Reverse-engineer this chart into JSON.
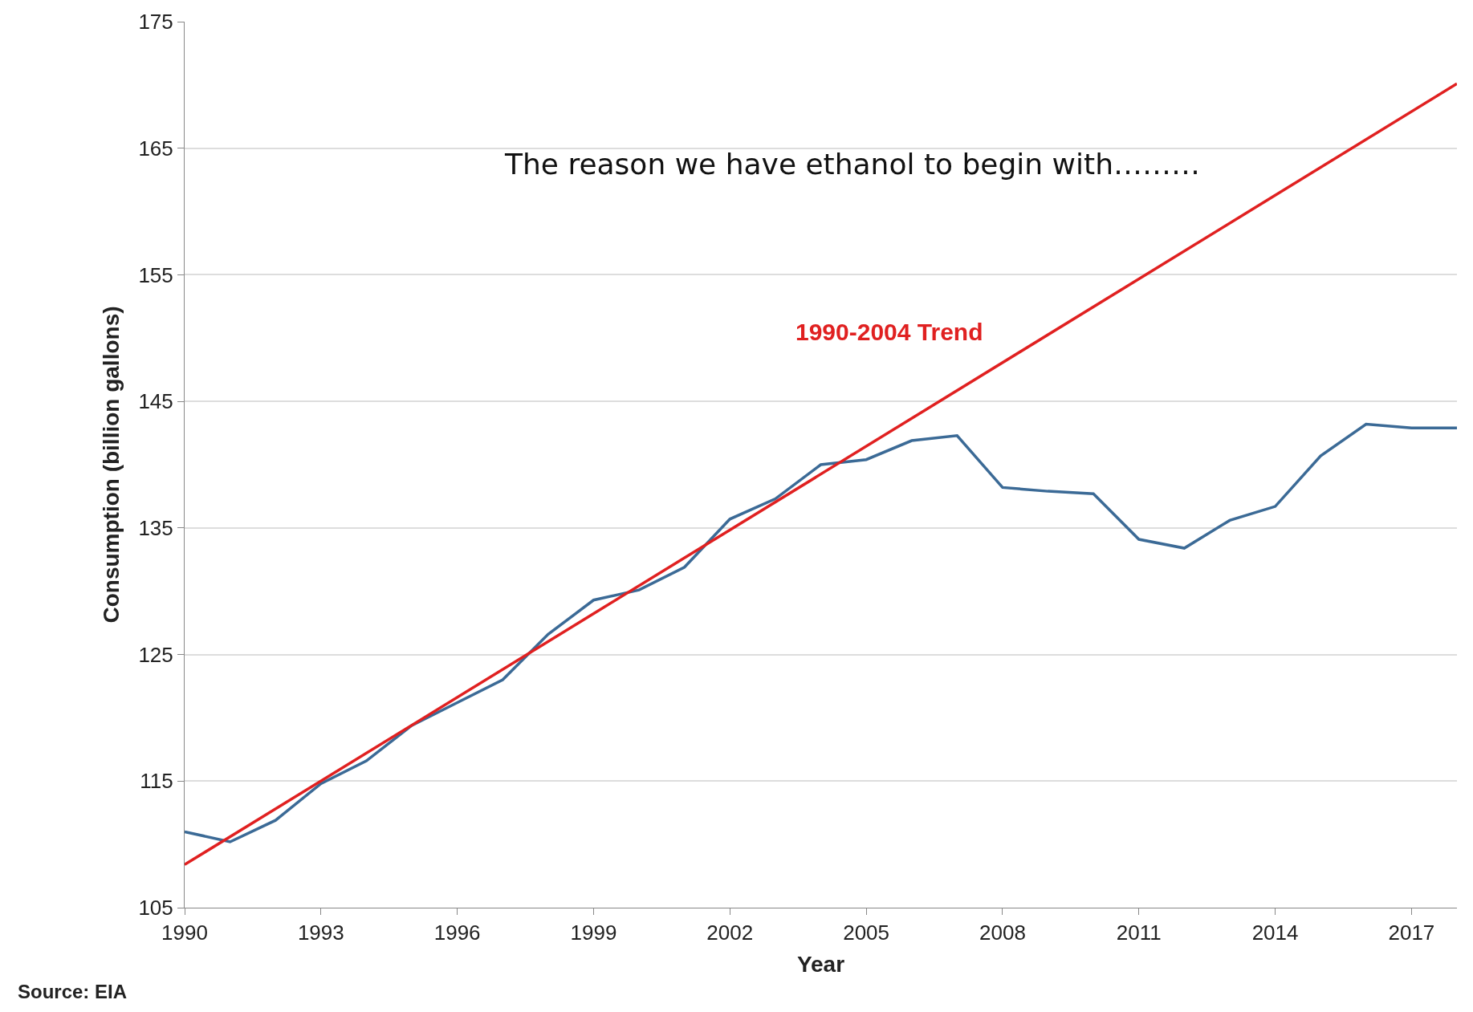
{
  "chart_data": {
    "type": "line",
    "title": "The reason we have ethanol to begin with………",
    "xlabel": "Year",
    "ylabel": "Consumption (billion gallons)",
    "series": [
      {
        "color": "#3b6a96",
        "x": [
          1990,
          1991,
          1992,
          1993,
          1994,
          1995,
          1996,
          1997,
          1998,
          1999,
          2000,
          2001,
          2002,
          2003,
          2004,
          2005,
          2006,
          2007,
          2008,
          2009,
          2010,
          2011,
          2012,
          2013,
          2014,
          2015,
          2016,
          2017,
          2018
        ],
        "values": [
          111.0,
          110.2,
          111.9,
          114.8,
          116.6,
          119.4,
          121.2,
          123.0,
          126.6,
          129.3,
          130.1,
          131.9,
          135.7,
          137.3,
          140.0,
          140.4,
          141.9,
          142.3,
          138.2,
          137.9,
          137.7,
          134.1,
          133.4,
          135.6,
          136.7,
          140.7,
          143.2,
          142.9,
          142.9
        ]
      },
      {
        "name": "1990-2004 Trend",
        "color": "#e02020",
        "x": [
          1990,
          2018
        ],
        "values": [
          108.4,
          170.1
        ]
      }
    ],
    "xlim": [
      1990,
      2018
    ],
    "xticks": [
      1990,
      1993,
      1996,
      1999,
      2002,
      2005,
      2008,
      2011,
      2014,
      2017
    ],
    "ylim": [
      105,
      175
    ],
    "yticks": [
      105,
      115,
      125,
      135,
      145,
      155,
      165,
      175
    ],
    "grid": "y",
    "marker": "none",
    "line_style": "solid",
    "annotations": [
      "Source: EIA"
    ]
  }
}
